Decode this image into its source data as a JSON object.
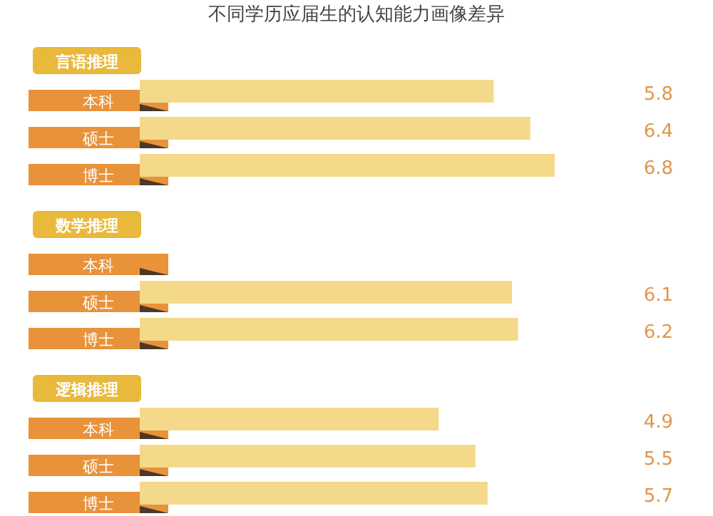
{
  "chart_data": [
    {
      "type": "bar",
      "orientation": "horizontal",
      "title": "不同学历应届生的认知能力画像差异",
      "subtitle": "言语推理",
      "categories": [
        "本科",
        "硕士",
        "博士"
      ],
      "values": [
        5.8,
        6.4,
        6.8
      ],
      "color": "#f5d98a",
      "data_labels": true
    },
    {
      "type": "bar",
      "orientation": "horizontal",
      "subtitle": "数学推理",
      "categories": [
        "本科",
        "硕士",
        "博士"
      ],
      "values": [
        null,
        6.1,
        6.2
      ],
      "color": "#f5d98a",
      "data_labels": true
    },
    {
      "type": "bar",
      "orientation": "horizontal",
      "subtitle": "逻辑推理",
      "categories": [
        "本科",
        "硕士",
        "博士"
      ],
      "values": [
        4.9,
        5.5,
        5.7
      ],
      "color": "#f5d98a",
      "data_labels": true
    }
  ]
}
